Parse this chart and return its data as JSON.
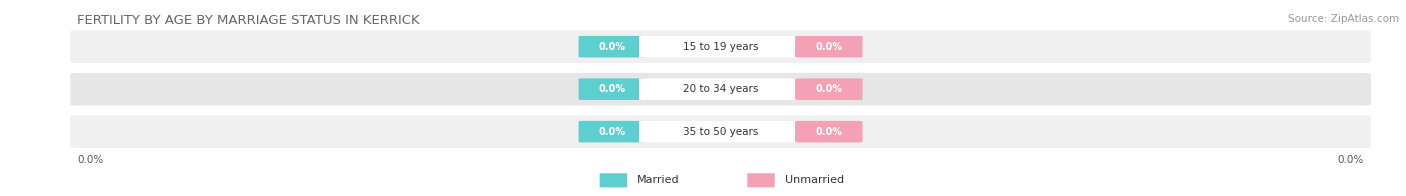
{
  "title": "FERTILITY BY AGE BY MARRIAGE STATUS IN KERRICK",
  "source": "Source: ZipAtlas.com",
  "age_groups": [
    "15 to 19 years",
    "20 to 34 years",
    "35 to 50 years"
  ],
  "married_values": [
    0.0,
    0.0,
    0.0
  ],
  "unmarried_values": [
    0.0,
    0.0,
    0.0
  ],
  "married_color": "#5ecfcf",
  "unmarried_color": "#f4a0b5",
  "row_bg_even": "#f0f0f0",
  "row_bg_odd": "#e6e6e6",
  "bar_bg_color": "#dedede",
  "title_fontsize": 9.5,
  "source_fontsize": 7.5,
  "label_fontsize": 7.5,
  "value_fontsize": 7,
  "background_color": "#ffffff",
  "badge_value_text": "0.0%",
  "left_axis_label": "0.0%",
  "right_axis_label": "0.0%",
  "legend_married": "Married",
  "legend_unmarried": "Unmarried"
}
